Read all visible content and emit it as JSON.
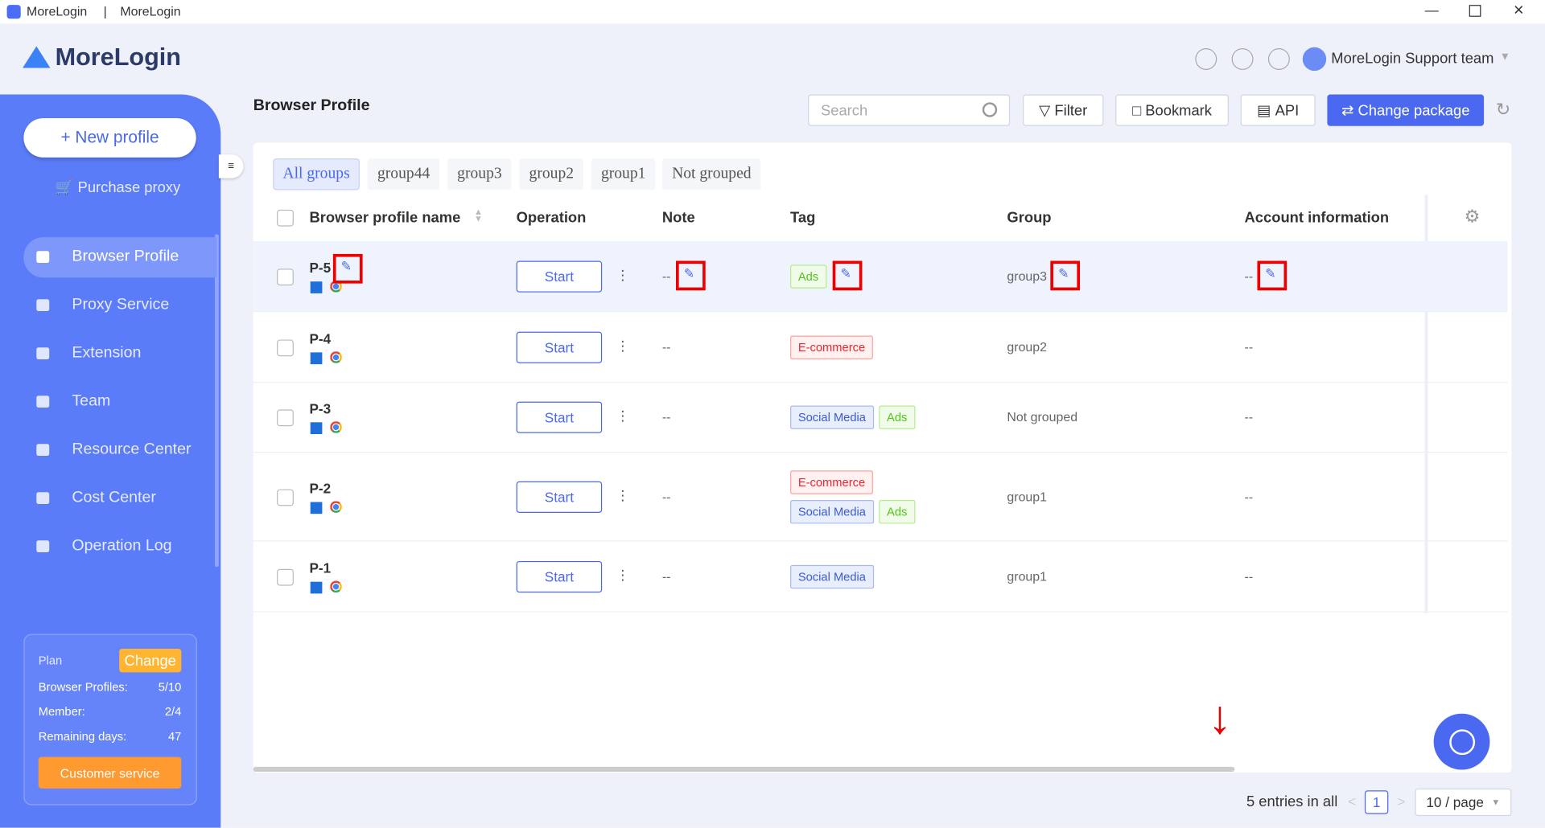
{
  "window": {
    "app": "MoreLogin",
    "title": "MoreLogin"
  },
  "header": {
    "logo": "MoreLogin",
    "team": "MoreLogin Support team"
  },
  "sidebar": {
    "new_profile": "+ New profile",
    "purchase_proxy": "Purchase proxy",
    "nav": [
      "Browser Profile",
      "Proxy Service",
      "Extension",
      "Team",
      "Resource Center",
      "Cost Center",
      "Operation Log"
    ],
    "plan": {
      "label": "Plan",
      "change": "Change",
      "rows": [
        [
          "Browser Profiles:",
          "5/10"
        ],
        [
          "Member:",
          "2/4"
        ],
        [
          "Remaining days:",
          "47"
        ]
      ],
      "customer_service": "Customer service"
    }
  },
  "toolbar": {
    "title": "Browser Profile",
    "search": "Search",
    "filter": "Filter",
    "bookmark": "Bookmark",
    "api": "API",
    "change_package": "Change package"
  },
  "groups": [
    "All groups",
    "group44",
    "group3",
    "group2",
    "group1",
    "Not grouped"
  ],
  "table": {
    "columns": [
      "Browser profile name",
      "Operation",
      "Note",
      "Tag",
      "Group",
      "Account information"
    ],
    "rows": [
      {
        "name": "P-5",
        "operation": "Start",
        "note": "--",
        "tags": [
          [
            {
              "text": "Ads",
              "color": "green"
            }
          ]
        ],
        "group": "group3",
        "account": "--"
      },
      {
        "name": "P-4",
        "operation": "Start",
        "note": "--",
        "tags": [
          [
            {
              "text": "E-commerce",
              "color": "red"
            }
          ]
        ],
        "group": "group2",
        "account": "--"
      },
      {
        "name": "P-3",
        "operation": "Start",
        "note": "--",
        "tags": [
          [
            {
              "text": "Social Media",
              "color": "blue"
            },
            {
              "text": "Ads",
              "color": "green"
            }
          ]
        ],
        "group": "Not grouped",
        "account": "--"
      },
      {
        "name": "P-2",
        "operation": "Start",
        "note": "--",
        "tags": [
          [
            {
              "text": "E-commerce",
              "color": "red"
            }
          ],
          [
            {
              "text": "Social Media",
              "color": "blue"
            },
            {
              "text": "Ads",
              "color": "green"
            }
          ]
        ],
        "group": "group1",
        "account": "--"
      },
      {
        "name": "P-1",
        "operation": "Start",
        "note": "--",
        "tags": [
          [
            {
              "text": "Social Media",
              "color": "blue"
            }
          ]
        ],
        "group": "group1",
        "account": "--"
      }
    ]
  },
  "footer": {
    "entries": "5 entries in all",
    "page": "1",
    "per_page": "10 / page"
  }
}
